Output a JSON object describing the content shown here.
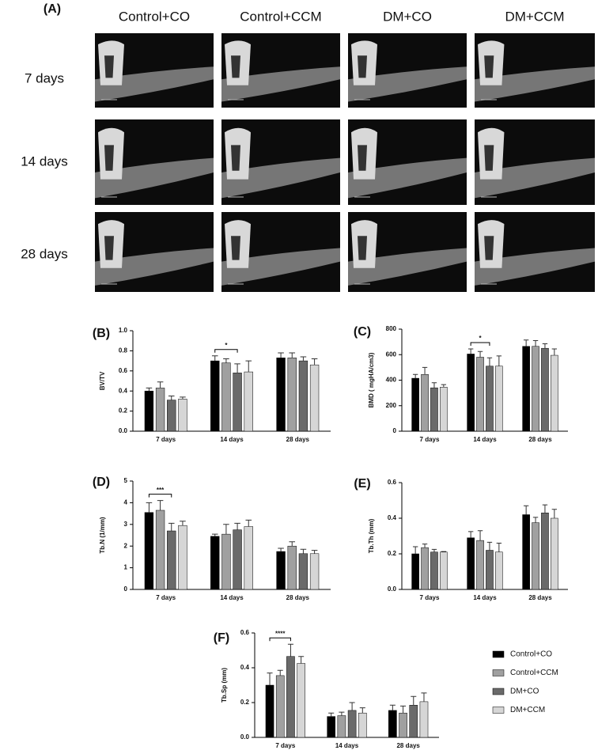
{
  "figure": {
    "panel": "(A)",
    "columns": [
      "Control+CO",
      "Control+CCM",
      "DM+CO",
      "DM+CCM"
    ],
    "rows": [
      "7 days",
      "14 days",
      "28 days"
    ]
  },
  "chart_data": [
    {
      "type": "bar",
      "panel": "(B)",
      "ylabel": "BV/TV",
      "categories": [
        "7 days",
        "14 days",
        "28 days"
      ],
      "ylim": [
        0,
        1
      ],
      "yticks": [
        {
          "value": 0,
          "label": "0.0"
        },
        0.2,
        0.4,
        0.6,
        0.8,
        {
          "value": 1,
          "label": "1.0"
        }
      ],
      "annotations": [
        "*"
      ],
      "series": [
        {
          "name": "Control+CO",
          "color": "#000000",
          "values": [
            0.4,
            0.7,
            0.73
          ],
          "errors": [
            0.03,
            0.05,
            0.05
          ]
        },
        {
          "name": "Control+CCM",
          "color": "#a0a0a0",
          "values": [
            0.43,
            0.68,
            0.73
          ],
          "errors": [
            0.06,
            0.04,
            0.05
          ]
        },
        {
          "name": "DM+CO",
          "color": "#6a6a6a",
          "values": [
            0.31,
            0.58,
            0.7
          ],
          "errors": [
            0.04,
            0.09,
            0.04
          ]
        },
        {
          "name": "DM+CCM",
          "color": "#d6d6d6",
          "values": [
            0.32,
            0.59,
            0.66
          ],
          "errors": [
            0.02,
            0.11,
            0.06
          ]
        }
      ]
    },
    {
      "type": "bar",
      "panel": "(C)",
      "ylabel": "BMD ( mgHA/cm3)",
      "categories": [
        "7 days",
        "14 days",
        "28 days"
      ],
      "ylim": [
        0,
        800
      ],
      "yticks": [
        0,
        200,
        400,
        600,
        800
      ],
      "annotations": [
        "*"
      ],
      "series": [
        {
          "name": "Control+CO",
          "color": "#000000",
          "values": [
            415,
            605,
            665
          ],
          "errors": [
            30,
            40,
            50
          ]
        },
        {
          "name": "Control+CCM",
          "color": "#a0a0a0",
          "values": [
            445,
            580,
            665
          ],
          "errors": [
            55,
            45,
            45
          ]
        },
        {
          "name": "DM+CO",
          "color": "#6a6a6a",
          "values": [
            340,
            510,
            650
          ],
          "errors": [
            40,
            65,
            35
          ]
        },
        {
          "name": "DM+CCM",
          "color": "#d6d6d6",
          "values": [
            345,
            510,
            595
          ],
          "errors": [
            20,
            80,
            50
          ]
        }
      ]
    },
    {
      "type": "bar",
      "panel": "(D)",
      "ylabel": "Tb.N (1/mm)",
      "categories": [
        "7 days",
        "14 days",
        "28 days"
      ],
      "ylim": [
        0,
        5
      ],
      "yticks": [
        0,
        1,
        2,
        3,
        4,
        5
      ],
      "annotations": [
        "***"
      ],
      "series": [
        {
          "name": "Control+CO",
          "color": "#000000",
          "values": [
            3.55,
            2.45,
            1.75
          ],
          "errors": [
            0.45,
            0.1,
            0.15
          ]
        },
        {
          "name": "Control+CCM",
          "color": "#a0a0a0",
          "values": [
            3.65,
            2.55,
            2.0
          ],
          "errors": [
            0.45,
            0.45,
            0.2
          ]
        },
        {
          "name": "DM+CO",
          "color": "#6a6a6a",
          "values": [
            2.7,
            2.75,
            1.65
          ],
          "errors": [
            0.35,
            0.3,
            0.2
          ]
        },
        {
          "name": "DM+CCM",
          "color": "#d6d6d6",
          "values": [
            2.95,
            2.9,
            1.65
          ],
          "errors": [
            0.2,
            0.3,
            0.15
          ]
        }
      ]
    },
    {
      "type": "bar",
      "panel": "(E)",
      "ylabel": "Tb.Th (mm)",
      "categories": [
        "7 days",
        "14 days",
        "28 days"
      ],
      "ylim": [
        0,
        0.6
      ],
      "yticks": [
        {
          "value": 0,
          "label": "0.0"
        },
        0.2,
        0.4,
        0.6
      ],
      "series": [
        {
          "name": "Control+CO",
          "color": "#000000",
          "values": [
            0.2,
            0.29,
            0.42
          ],
          "errors": [
            0.04,
            0.035,
            0.05
          ]
        },
        {
          "name": "Control+CCM",
          "color": "#a0a0a0",
          "values": [
            0.235,
            0.275,
            0.375
          ],
          "errors": [
            0.02,
            0.055,
            0.03
          ]
        },
        {
          "name": "DM+CO",
          "color": "#6a6a6a",
          "values": [
            0.21,
            0.22,
            0.43
          ],
          "errors": [
            0.015,
            0.045,
            0.045
          ]
        },
        {
          "name": "DM+CCM",
          "color": "#d6d6d6",
          "values": [
            0.21,
            0.21,
            0.4
          ],
          "errors": [
            0.003,
            0.05,
            0.05
          ]
        }
      ]
    },
    {
      "type": "bar",
      "panel": "(F)",
      "ylabel": "Tb.Sp (mm)",
      "categories": [
        "7 days",
        "14 days",
        "28 days"
      ],
      "ylim": [
        0,
        0.6
      ],
      "yticks": [
        {
          "value": 0,
          "label": "0.0"
        },
        0.2,
        0.4,
        0.6
      ],
      "annotations": [
        "****"
      ],
      "series": [
        {
          "name": "Control+CO",
          "color": "#000000",
          "values": [
            0.3,
            0.12,
            0.155
          ],
          "errors": [
            0.07,
            0.02,
            0.03
          ]
        },
        {
          "name": "Control+CCM",
          "color": "#a0a0a0",
          "values": [
            0.355,
            0.125,
            0.14
          ],
          "errors": [
            0.03,
            0.02,
            0.04
          ]
        },
        {
          "name": "DM+CO",
          "color": "#6a6a6a",
          "values": [
            0.465,
            0.155,
            0.185
          ],
          "errors": [
            0.07,
            0.045,
            0.05
          ]
        },
        {
          "name": "DM+CCM",
          "color": "#d6d6d6",
          "values": [
            0.425,
            0.14,
            0.205
          ],
          "errors": [
            0.04,
            0.03,
            0.05
          ]
        }
      ]
    }
  ]
}
